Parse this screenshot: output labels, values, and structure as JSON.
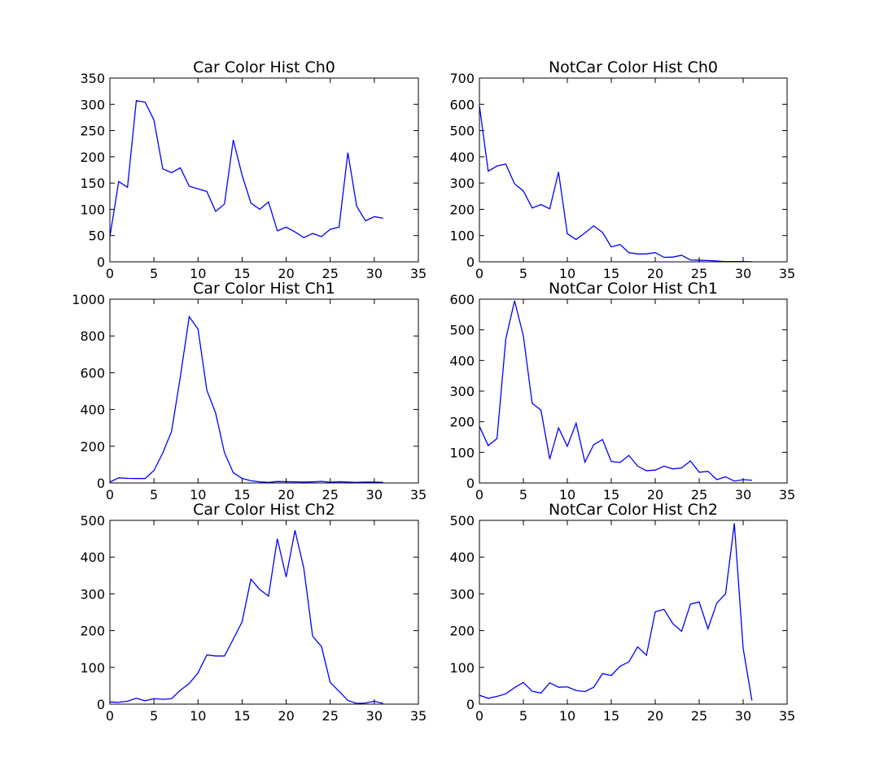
{
  "figure": {
    "background": "#ffffff",
    "line_color": "#0000ff"
  },
  "chart_data": [
    {
      "type": "line",
      "title": "Car Color Hist Ch0",
      "xlim": [
        0,
        35
      ],
      "ylim": [
        0,
        350
      ],
      "xticks": [
        0,
        5,
        10,
        15,
        20,
        25,
        30,
        35
      ],
      "yticks": [
        0,
        50,
        100,
        150,
        200,
        250,
        300,
        350
      ],
      "x": [
        0,
        1,
        2,
        3,
        4,
        5,
        6,
        7,
        8,
        9,
        10,
        11,
        12,
        13,
        14,
        15,
        16,
        17,
        18,
        19,
        20,
        21,
        22,
        23,
        24,
        25,
        26,
        27,
        28,
        29,
        30,
        31
      ],
      "series": [
        {
          "values": [
            48,
            153,
            142,
            307,
            304,
            270,
            177,
            170,
            179,
            144,
            139,
            134,
            96,
            110,
            232,
            165,
            112,
            100,
            114,
            59,
            66,
            57,
            46,
            54,
            48,
            62,
            66,
            208,
            106,
            78,
            86,
            83
          ]
        }
      ]
    },
    {
      "type": "line",
      "title": "NotCar Color Hist Ch0",
      "xlim": [
        0,
        35
      ],
      "ylim": [
        0,
        700
      ],
      "xticks": [
        0,
        5,
        10,
        15,
        20,
        25,
        30,
        35
      ],
      "yticks": [
        0,
        100,
        200,
        300,
        400,
        500,
        600,
        700
      ],
      "x": [
        0,
        1,
        2,
        3,
        4,
        5,
        6,
        7,
        8,
        9,
        10,
        11,
        12,
        13,
        14,
        15,
        16,
        17,
        18,
        19,
        20,
        21,
        22,
        23,
        24,
        25,
        26,
        27,
        28,
        29,
        30,
        31
      ],
      "series": [
        {
          "values": [
            595,
            345,
            365,
            372,
            297,
            270,
            205,
            218,
            202,
            342,
            107,
            85,
            110,
            137,
            112,
            57,
            66,
            35,
            30,
            30,
            35,
            17,
            18,
            25,
            7,
            6,
            5,
            3,
            1,
            1,
            1,
            0
          ]
        }
      ]
    },
    {
      "type": "line",
      "title": "Car Color Hist Ch1",
      "xlim": [
        0,
        35
      ],
      "ylim": [
        0,
        1000
      ],
      "xticks": [
        0,
        5,
        10,
        15,
        20,
        25,
        30,
        35
      ],
      "yticks": [
        0,
        200,
        400,
        600,
        800,
        1000
      ],
      "x": [
        0,
        1,
        2,
        3,
        4,
        5,
        6,
        7,
        8,
        9,
        10,
        11,
        12,
        13,
        14,
        15,
        16,
        17,
        18,
        19,
        20,
        21,
        22,
        23,
        24,
        25,
        26,
        27,
        28,
        29,
        30,
        31
      ],
      "series": [
        {
          "values": [
            5,
            28,
            25,
            24,
            24,
            68,
            163,
            281,
            580,
            905,
            837,
            505,
            380,
            165,
            56,
            25,
            12,
            6,
            3,
            8,
            7,
            6,
            5,
            6,
            9,
            4,
            7,
            5,
            3,
            5,
            5,
            3
          ]
        }
      ]
    },
    {
      "type": "line",
      "title": "NotCar Color Hist Ch1",
      "xlim": [
        0,
        35
      ],
      "ylim": [
        0,
        600
      ],
      "xticks": [
        0,
        5,
        10,
        15,
        20,
        25,
        30,
        35
      ],
      "yticks": [
        0,
        100,
        200,
        300,
        400,
        500,
        600
      ],
      "x": [
        0,
        1,
        2,
        3,
        4,
        5,
        6,
        7,
        8,
        9,
        10,
        11,
        12,
        13,
        14,
        15,
        16,
        17,
        18,
        19,
        20,
        21,
        22,
        23,
        24,
        25,
        26,
        27,
        28,
        29,
        30,
        31
      ],
      "series": [
        {
          "values": [
            185,
            122,
            145,
            470,
            595,
            480,
            260,
            238,
            78,
            180,
            120,
            195,
            68,
            125,
            142,
            70,
            67,
            90,
            55,
            40,
            42,
            55,
            46,
            49,
            72,
            35,
            38,
            11,
            20,
            6,
            11,
            9
          ]
        }
      ]
    },
    {
      "type": "line",
      "title": "Car Color Hist Ch2",
      "xlim": [
        0,
        35
      ],
      "ylim": [
        0,
        500
      ],
      "xticks": [
        0,
        5,
        10,
        15,
        20,
        25,
        30,
        35
      ],
      "yticks": [
        0,
        100,
        200,
        300,
        400,
        500
      ],
      "x": [
        0,
        1,
        2,
        3,
        4,
        5,
        6,
        7,
        8,
        9,
        10,
        11,
        12,
        13,
        14,
        15,
        16,
        17,
        18,
        19,
        20,
        21,
        22,
        23,
        24,
        25,
        26,
        27,
        28,
        29,
        30,
        31
      ],
      "series": [
        {
          "values": [
            6,
            5,
            8,
            16,
            9,
            15,
            13,
            15,
            38,
            56,
            85,
            134,
            131,
            131,
            177,
            224,
            340,
            312,
            294,
            450,
            346,
            473,
            370,
            185,
            157,
            59,
            35,
            10,
            2,
            3,
            8,
            2
          ]
        }
      ]
    },
    {
      "type": "line",
      "title": "NotCar Color Hist Ch2",
      "xlim": [
        0,
        35
      ],
      "ylim": [
        0,
        500
      ],
      "xticks": [
        0,
        5,
        10,
        15,
        20,
        25,
        30,
        35
      ],
      "yticks": [
        0,
        100,
        200,
        300,
        400,
        500
      ],
      "x": [
        0,
        1,
        2,
        3,
        4,
        5,
        6,
        7,
        8,
        9,
        10,
        11,
        12,
        13,
        14,
        15,
        16,
        17,
        18,
        19,
        20,
        21,
        22,
        23,
        24,
        25,
        26,
        27,
        28,
        29,
        30,
        31
      ],
      "series": [
        {
          "values": [
            24,
            16,
            21,
            28,
            45,
            59,
            35,
            30,
            58,
            46,
            47,
            37,
            34,
            46,
            83,
            78,
            103,
            115,
            156,
            133,
            251,
            258,
            219,
            198,
            272,
            278,
            205,
            275,
            300,
            492,
            152,
            10
          ]
        }
      ]
    }
  ]
}
